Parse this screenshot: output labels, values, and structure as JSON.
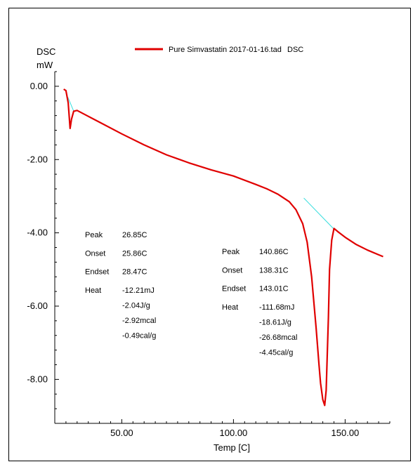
{
  "chart_data": {
    "type": "line",
    "title": "",
    "ylabel": "DSC",
    "yunit": "mW",
    "xlabel": "Temp  [C]",
    "xlim": [
      20,
      170
    ],
    "ylim": [
      -9.2,
      0.4
    ],
    "xticks": [
      {
        "value": 50,
        "label": "50.00"
      },
      {
        "value": 100,
        "label": "100.00"
      },
      {
        "value": 150,
        "label": "150.00"
      }
    ],
    "yticks": [
      {
        "value": 0,
        "label": "0.00"
      },
      {
        "value": -2,
        "label": "-2.00"
      },
      {
        "value": -4,
        "label": "-4.00"
      },
      {
        "value": -6,
        "label": "-6.00"
      },
      {
        "value": -8,
        "label": "-8.00"
      }
    ],
    "legend": {
      "position": "top-center",
      "label": "Pure Simvastatin 2017-01-16.tad",
      "tag": "DSC",
      "color": "#e00000"
    },
    "series": [
      {
        "name": "Pure Simvastatin 2017-01-16.tad",
        "color": "#e00000",
        "x": [
          24,
          25,
          26,
          26.85,
          27.5,
          28.47,
          30,
          35,
          40,
          50,
          60,
          70,
          80,
          90,
          100,
          110,
          115,
          120,
          125,
          128,
          131,
          133,
          135,
          137,
          138.31,
          139,
          140,
          140.86,
          141.5,
          142.5,
          143.01,
          144,
          145,
          147,
          150,
          155,
          160,
          165,
          167
        ],
        "y": [
          -0.08,
          -0.12,
          -0.45,
          -1.15,
          -0.9,
          -0.68,
          -0.66,
          -0.82,
          -0.98,
          -1.3,
          -1.6,
          -1.87,
          -2.09,
          -2.28,
          -2.45,
          -2.68,
          -2.8,
          -2.95,
          -3.15,
          -3.37,
          -3.75,
          -4.25,
          -5.2,
          -6.6,
          -7.6,
          -8.1,
          -8.55,
          -8.71,
          -8.3,
          -6.3,
          -5.0,
          -4.2,
          -3.88,
          -3.98,
          -4.12,
          -4.32,
          -4.47,
          -4.6,
          -4.65
        ]
      }
    ],
    "baselines": [
      {
        "x": [
          25.86,
          28.47
        ],
        "y": [
          -0.3,
          -0.68
        ]
      },
      {
        "x": [
          131.5,
          145
        ],
        "y": [
          -3.05,
          -3.9
        ]
      }
    ],
    "annotations": [
      {
        "rows": [
          {
            "label": "Peak",
            "value": "26.85C"
          },
          {
            "label": "Onset",
            "value": "25.86C"
          },
          {
            "label": "Endset",
            "value": "28.47C"
          },
          {
            "label": "Heat",
            "value": "-12.21mJ"
          },
          {
            "label": "",
            "value": "-2.04J/g"
          },
          {
            "label": "",
            "value": "-2.92mcal"
          },
          {
            "label": "",
            "value": "-0.49cal/g"
          }
        ]
      },
      {
        "rows": [
          {
            "label": "Peak",
            "value": "140.86C"
          },
          {
            "label": "Onset",
            "value": "138.31C"
          },
          {
            "label": "Endset",
            "value": "143.01C"
          },
          {
            "label": "Heat",
            "value": "-111.68mJ"
          },
          {
            "label": "",
            "value": "-18.61J/g"
          },
          {
            "label": "",
            "value": "-26.68mcal"
          },
          {
            "label": "",
            "value": "-4.45cal/g"
          }
        ]
      }
    ]
  }
}
